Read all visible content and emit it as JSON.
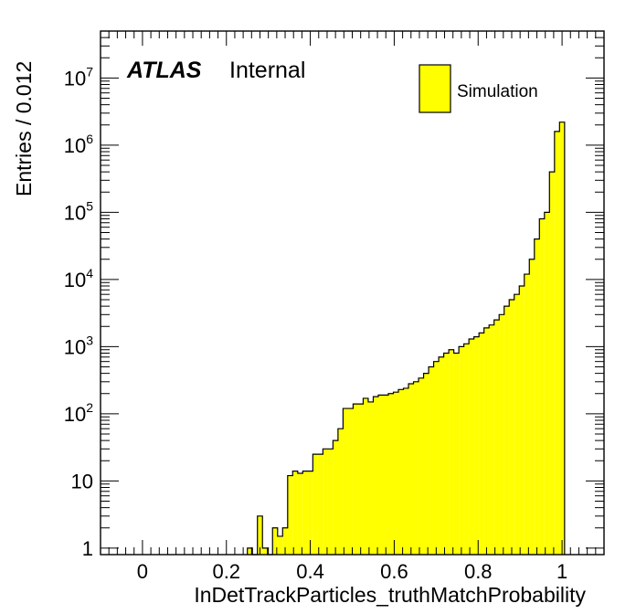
{
  "chart_data": {
    "type": "bar",
    "xlabel": "InDetTrackParticles_truthMatchProbability",
    "ylabel": "Entries / 0.012",
    "xlim": [
      -0.1,
      1.1
    ],
    "ylim": [
      0.8,
      50000000
    ],
    "yscale": "log",
    "grid": false,
    "bin_width": 0.012,
    "x_ticks": [
      "0",
      "0.2",
      "0.4",
      "0.6",
      "0.8",
      "1"
    ],
    "y_ticks": [
      {
        "base": "1",
        "exp": ""
      },
      {
        "base": "10",
        "exp": ""
      },
      {
        "base": "10",
        "exp": "2"
      },
      {
        "base": "10",
        "exp": "3"
      },
      {
        "base": "10",
        "exp": "4"
      },
      {
        "base": "10",
        "exp": "5"
      },
      {
        "base": "10",
        "exp": "6"
      },
      {
        "base": "10",
        "exp": "7"
      }
    ],
    "label_main": "ATLAS",
    "label_sub": "Internal",
    "legend_position": "top-right",
    "series": [
      {
        "name": "Simulation",
        "color": "#ffff00",
        "edge_color": "#000000",
        "bin_starts": [
          0.25,
          0.262,
          0.274,
          0.286,
          0.298,
          0.31,
          0.322,
          0.334,
          0.346,
          0.358,
          0.37,
          0.382,
          0.394,
          0.406,
          0.418,
          0.43,
          0.442,
          0.454,
          0.466,
          0.478,
          0.49,
          0.502,
          0.514,
          0.526,
          0.538,
          0.55,
          0.562,
          0.574,
          0.586,
          0.598,
          0.61,
          0.622,
          0.634,
          0.646,
          0.658,
          0.67,
          0.682,
          0.694,
          0.706,
          0.718,
          0.73,
          0.742,
          0.754,
          0.766,
          0.778,
          0.79,
          0.802,
          0.814,
          0.826,
          0.838,
          0.85,
          0.862,
          0.874,
          0.886,
          0.898,
          0.91,
          0.922,
          0.934,
          0.946,
          0.958,
          0.97,
          0.982,
          0.994
        ],
        "values": [
          1,
          0,
          3,
          1,
          0,
          2,
          1.5,
          2,
          12,
          14,
          13,
          14,
          14,
          25,
          25,
          30,
          30,
          40,
          60,
          120,
          120,
          140,
          140,
          170,
          150,
          180,
          190,
          190,
          200,
          210,
          230,
          240,
          280,
          300,
          340,
          400,
          500,
          600,
          700,
          800,
          900,
          800,
          1000,
          1100,
          1300,
          1400,
          1600,
          1900,
          2100,
          2500,
          3000,
          4000,
          5000,
          6000,
          8000,
          12000,
          20000,
          40000,
          80000,
          100000,
          400000,
          1600000,
          2200000
        ]
      }
    ]
  }
}
